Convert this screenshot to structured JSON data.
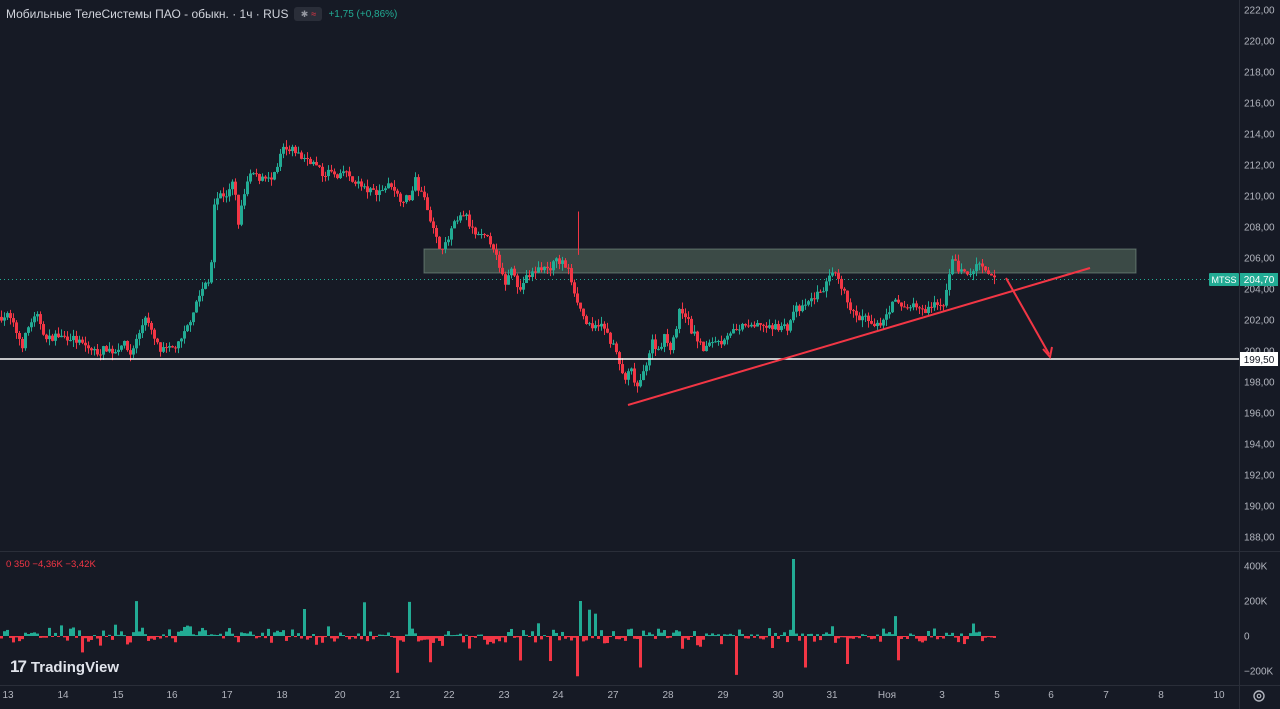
{
  "header": {
    "title": "Мобильные ТелеСистемы ПАО - обыкн. · 1ч · RUS",
    "flag_glyph": "✱",
    "flag_wave": "≈",
    "change": "+1,75 (+0,86%)"
  },
  "volume_legend": "0  350  −4,36K  −3,42K",
  "logo": {
    "mark": "17",
    "text": "TradingView"
  },
  "colors": {
    "background": "#161a25",
    "up": "#22ab94",
    "down": "#f23645",
    "support_line": "#ffffff",
    "trendline": "#f23645",
    "zone_fill": "#a5d6a7"
  },
  "price_tag": {
    "symbol": "MTSS",
    "value": "204,70"
  },
  "support_tag": "199,50",
  "settings_icon": "gear-icon",
  "chart_data": {
    "type": "candlestick",
    "title": "Мобильные ТелеСистемы ПАО - обыкн. · 1ч · RUS",
    "xlabel": "",
    "ylabel": "",
    "grid": false,
    "ylim": [
      187.5,
      222.5
    ],
    "y_ticks": [
      "222,00",
      "220,00",
      "218,00",
      "216,00",
      "214,00",
      "212,00",
      "210,00",
      "208,00",
      "206,00",
      "204,00",
      "202,00",
      "200,00",
      "198,00",
      "196,00",
      "194,00",
      "192,00",
      "190,00",
      "188,00"
    ],
    "x_ticks": [
      "13",
      "14",
      "15",
      "16",
      "17",
      "18",
      "20",
      "21",
      "22",
      "23",
      "24",
      "27",
      "28",
      "29",
      "30",
      "31",
      "Ноя",
      "3",
      "5",
      "6",
      "7",
      "8",
      "10"
    ],
    "volume_ticks": [
      "400K",
      "200K",
      "0",
      "−200K"
    ],
    "path": [
      [
        0,
        202.2
      ],
      [
        8,
        202.3
      ],
      [
        14,
        201.5
      ],
      [
        22,
        200.4
      ],
      [
        30,
        201.9
      ],
      [
        38,
        202.2
      ],
      [
        46,
        200.7
      ],
      [
        55,
        201.0
      ],
      [
        62,
        200.9
      ],
      [
        70,
        200.9
      ],
      [
        80,
        200.5
      ],
      [
        90,
        200.1
      ],
      [
        98,
        199.9
      ],
      [
        106,
        200.2
      ],
      [
        114,
        199.9
      ],
      [
        122,
        200.6
      ],
      [
        130,
        199.8
      ],
      [
        138,
        201.0
      ],
      [
        145,
        202.3
      ],
      [
        152,
        201.0
      ],
      [
        160,
        200.0
      ],
      [
        170,
        200.1
      ],
      [
        180,
        200.5
      ],
      [
        188,
        201.7
      ],
      [
        196,
        203.2
      ],
      [
        204,
        204.2
      ],
      [
        210,
        204.5
      ],
      [
        214,
        209.7
      ],
      [
        220,
        210.1
      ],
      [
        228,
        210.1
      ],
      [
        233,
        211.0
      ],
      [
        238,
        208.3
      ],
      [
        246,
        210.7
      ],
      [
        252,
        211.5
      ],
      [
        258,
        211.1
      ],
      [
        264,
        211.4
      ],
      [
        270,
        210.9
      ],
      [
        276,
        211.5
      ],
      [
        282,
        213.1
      ],
      [
        288,
        212.8
      ],
      [
        294,
        213.0
      ],
      [
        300,
        212.5
      ],
      [
        308,
        212.4
      ],
      [
        315,
        212.0
      ],
      [
        322,
        211.4
      ],
      [
        330,
        211.6
      ],
      [
        338,
        211.0
      ],
      [
        345,
        211.8
      ],
      [
        350,
        210.9
      ],
      [
        356,
        211.0
      ],
      [
        362,
        210.5
      ],
      [
        370,
        210.3
      ],
      [
        378,
        210.3
      ],
      [
        386,
        210.6
      ],
      [
        392,
        210.8
      ],
      [
        398,
        209.9
      ],
      [
        404,
        209.8
      ],
      [
        410,
        209.9
      ],
      [
        415,
        211.0
      ],
      [
        420,
        210.2
      ],
      [
        426,
        209.6
      ],
      [
        432,
        208.0
      ],
      [
        438,
        206.8
      ],
      [
        446,
        206.8
      ],
      [
        452,
        208.0
      ],
      [
        458,
        208.4
      ],
      [
        464,
        208.9
      ],
      [
        470,
        208.0
      ],
      [
        476,
        207.4
      ],
      [
        484,
        207.3
      ],
      [
        492,
        207.0
      ],
      [
        500,
        205.0
      ],
      [
        506,
        204.3
      ],
      [
        512,
        205.8
      ],
      [
        518,
        203.7
      ],
      [
        524,
        204.6
      ],
      [
        532,
        205.0
      ],
      [
        540,
        205.4
      ],
      [
        548,
        205.3
      ],
      [
        556,
        205.8
      ],
      [
        562,
        205.7
      ],
      [
        568,
        205.2
      ],
      [
        574,
        203.9
      ],
      [
        580,
        202.7
      ],
      [
        586,
        201.8
      ],
      [
        592,
        201.3
      ],
      [
        598,
        201.8
      ],
      [
        604,
        201.4
      ],
      [
        610,
        200.7
      ],
      [
        616,
        199.9
      ],
      [
        620,
        198.7
      ],
      [
        626,
        198.1
      ],
      [
        630,
        198.9
      ],
      [
        636,
        197.6
      ],
      [
        640,
        197.9
      ],
      [
        646,
        199.3
      ],
      [
        652,
        200.6
      ],
      [
        658,
        200.1
      ],
      [
        664,
        200.9
      ],
      [
        670,
        200.3
      ],
      [
        676,
        201.5
      ],
      [
        680,
        202.8
      ],
      [
        686,
        202.3
      ],
      [
        690,
        201.4
      ],
      [
        696,
        200.9
      ],
      [
        702,
        200.1
      ],
      [
        708,
        200.3
      ],
      [
        714,
        200.8
      ],
      [
        720,
        200.5
      ],
      [
        726,
        201.1
      ],
      [
        732,
        201.3
      ],
      [
        738,
        201.1
      ],
      [
        744,
        201.8
      ],
      [
        752,
        201.4
      ],
      [
        760,
        201.8
      ],
      [
        768,
        201.4
      ],
      [
        776,
        201.6
      ],
      [
        782,
        201.6
      ],
      [
        788,
        201.5
      ],
      [
        794,
        202.8
      ],
      [
        800,
        202.6
      ],
      [
        806,
        203.0
      ],
      [
        812,
        203.4
      ],
      [
        818,
        203.7
      ],
      [
        824,
        204.1
      ],
      [
        830,
        204.8
      ],
      [
        836,
        204.9
      ],
      [
        840,
        204.0
      ],
      [
        846,
        203.5
      ],
      [
        852,
        202.5
      ],
      [
        858,
        202.0
      ],
      [
        864,
        202.2
      ],
      [
        870,
        201.6
      ],
      [
        876,
        201.5
      ],
      [
        882,
        202.0
      ],
      [
        888,
        202.6
      ],
      [
        894,
        203.2
      ],
      [
        900,
        202.9
      ],
      [
        906,
        202.8
      ],
      [
        912,
        203.0
      ],
      [
        918,
        202.8
      ],
      [
        924,
        202.4
      ],
      [
        930,
        202.9
      ],
      [
        936,
        202.9
      ],
      [
        942,
        202.8
      ],
      [
        946,
        204.0
      ],
      [
        950,
        205.5
      ],
      [
        954,
        206.0
      ],
      [
        958,
        205.3
      ],
      [
        964,
        205.0
      ],
      [
        970,
        204.9
      ],
      [
        976,
        205.6
      ],
      [
        982,
        205.3
      ],
      [
        988,
        204.8
      ],
      [
        994,
        204.7
      ]
    ],
    "volume_spikes": [
      [
        410,
        195000
      ],
      [
        578,
        -230000
      ],
      [
        792,
        440000
      ],
      [
        580,
        200000
      ],
      [
        520,
        -140000
      ],
      [
        396,
        -210000
      ],
      [
        805,
        -180000
      ],
      [
        640,
        -180000
      ],
      [
        846,
        -160000
      ],
      [
        430,
        -150000
      ]
    ],
    "annotations": {
      "resistance_zone": [
        205.0,
        206.6
      ],
      "support_level": 199.5,
      "trendline": [
        [
          628,
          196.7
        ],
        [
          1090,
          205.4
        ]
      ]
    }
  }
}
